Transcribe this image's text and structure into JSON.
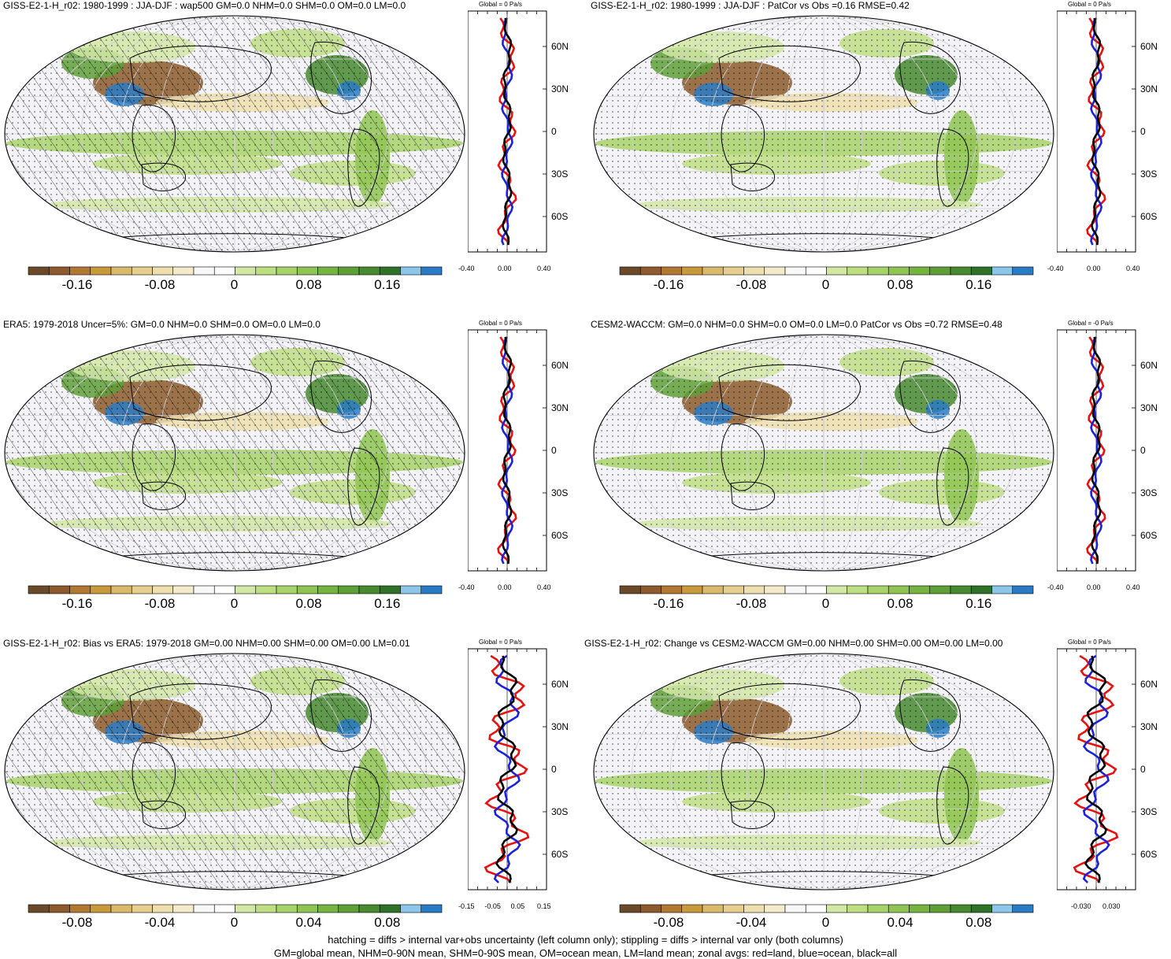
{
  "figure": {
    "footer_line1": "hatching = diffs > internal var+obs uncertainty (left column only); stippling = diffs > internal var only (both columns)",
    "footer_line2": "GM=global mean, NHM=0-90N mean, SHM=0-90S mean, OM=ocean mean, LM=land mean; zonal avgs: red=land, blue=ocean, black=all"
  },
  "colors": {
    "land_zonal": "#e8110f",
    "ocean_zonal": "#1a22e0",
    "all_zonal": "#000000",
    "colorbar": [
      "#6b4a2a",
      "#8c5a2c",
      "#b07830",
      "#c89a3c",
      "#d9b96a",
      "#e6cf8e",
      "#efdfae",
      "#f4ebcc",
      "#f8f8f8",
      "#ffffff",
      "#d2e8a4",
      "#bede82",
      "#a8d26a",
      "#8fc452",
      "#76b340",
      "#5e9f38",
      "#478a30",
      "#2f7128",
      "#8cc7ea",
      "#2a7bc6"
    ]
  },
  "panels": [
    {
      "title": "GISS-E2-1-H_r02: 1980-1999 : JJA-DJF : wap500 GM=0.0 NHM=0.0 SHM=0.0 OM=0.0 LM=0.0",
      "zonal_title": "Global = 0 Pa/s",
      "lat_labels": [
        "60N",
        "30N",
        "0",
        "30S",
        "60S"
      ],
      "xticks": [
        "-0.40",
        "0.00",
        "0.40"
      ],
      "cb_labels": [
        "-0.16",
        "-0.08",
        "0",
        "0.08",
        "0.16"
      ],
      "hatching": true
    },
    {
      "title": "GISS-E2-1-H_r02: 1980-1999 : JJA-DJF : PatCor vs Obs =0.16 RMSE=0.42",
      "zonal_title": "Global = 0 Pa/s",
      "lat_labels": [
        "60N",
        "30N",
        "0",
        "30S",
        "60S"
      ],
      "xticks": [
        "-0.40",
        "0.00",
        "0.40"
      ],
      "cb_labels": [
        "-0.16",
        "-0.08",
        "0",
        "0.08",
        "0.16"
      ],
      "hatching": false
    },
    {
      "title": "ERA5: 1979-2018 Uncer=5%: GM=0.0 NHM=0.0 SHM=0.0 OM=0.0 LM=0.0",
      "zonal_title": "Global = 0 Pa/s",
      "lat_labels": [
        "60N",
        "30N",
        "0",
        "30S",
        "60S"
      ],
      "xticks": [
        "-0.40",
        "0.00",
        "0.40"
      ],
      "cb_labels": [
        "-0.16",
        "-0.08",
        "0",
        "0.08",
        "0.16"
      ],
      "hatching": true
    },
    {
      "title": "CESM2-WACCM: GM=0.0 NHM=0.0 SHM=0.0 OM=0.0 LM=0.0 PatCor vs Obs =0.72 RMSE=0.48",
      "zonal_title": "Global = -0 Pa/s",
      "lat_labels": [
        "60N",
        "30N",
        "0",
        "30S",
        "60S"
      ],
      "xticks": [
        "-0.40",
        "0.00",
        "0.40"
      ],
      "cb_labels": [
        "-0.16",
        "-0.08",
        "0",
        "0.08",
        "0.16"
      ],
      "hatching": false
    },
    {
      "title": "GISS-E2-1-H_r02: Bias vs ERA5: 1979-2018 GM=0.00 NHM=0.00 SHM=0.00 OM=0.00 LM=0.01",
      "zonal_title": "Global = 0 Pa/s",
      "lat_labels": [
        "60N",
        "30N",
        "0",
        "30S",
        "60S"
      ],
      "xticks": [
        "-0.15",
        "-0.05",
        "0.05",
        "0.15"
      ],
      "cb_labels": [
        "-0.08",
        "-0.04",
        "0",
        "0.04",
        "0.08"
      ],
      "hatching": true
    },
    {
      "title": "GISS-E2-1-H_r02: Change vs CESM2-WACCM GM=0.00 NHM=0.00 SHM=0.00 OM=0.00 LM=0.00",
      "zonal_title": "Global = 0 Pa/s",
      "lat_labels": [
        "60N",
        "30N",
        "0",
        "30S",
        "60S"
      ],
      "xticks": [
        "-0.030",
        "0.030"
      ],
      "cb_labels": [
        "-0.08",
        "-0.04",
        "0",
        "0.04",
        "0.08"
      ],
      "hatching": false
    }
  ]
}
